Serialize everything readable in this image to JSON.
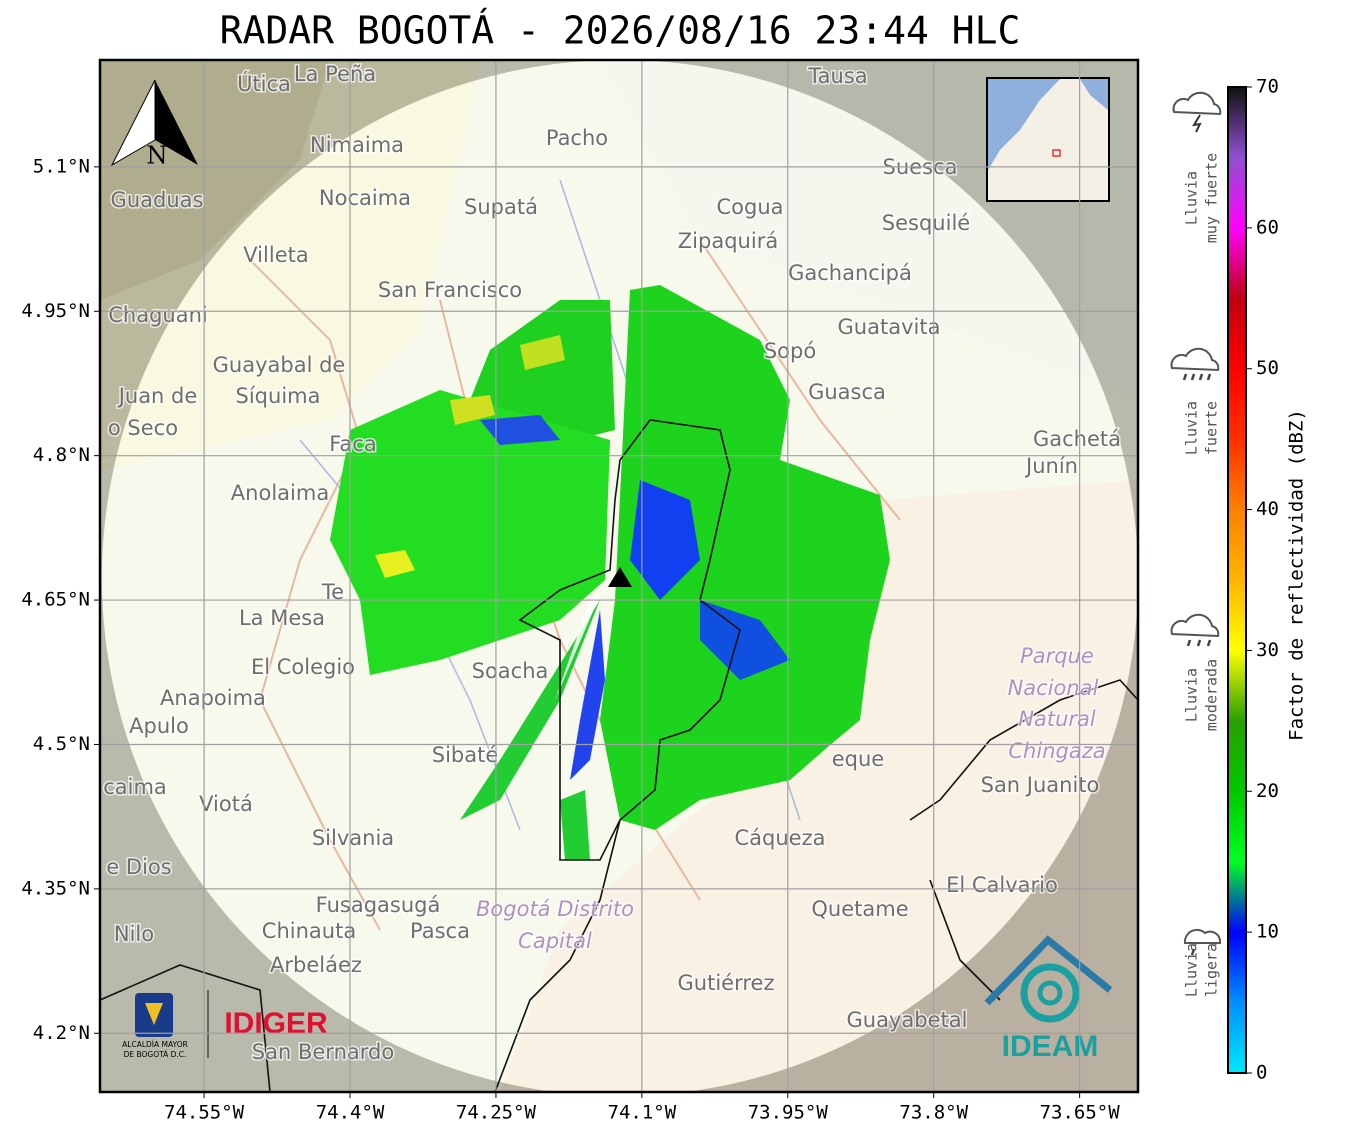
{
  "title": "RADAR BOGOTÁ - 2026/08/16 23:44 HLC",
  "map": {
    "xlim": [
      -74.657,
      -73.59
    ],
    "ylim": [
      4.139,
      5.211
    ],
    "xticks": [
      {
        "value": -74.55,
        "label": "74.55°W"
      },
      {
        "value": -74.4,
        "label": "74.4°W"
      },
      {
        "value": -74.25,
        "label": "74.25°W"
      },
      {
        "value": -74.1,
        "label": "74.1°W"
      },
      {
        "value": -73.95,
        "label": "73.95°W"
      },
      {
        "value": -73.8,
        "label": "73.8°W"
      },
      {
        "value": -73.65,
        "label": "73.65°W"
      }
    ],
    "yticks": [
      {
        "value": 5.1,
        "label": "5.1°N"
      },
      {
        "value": 4.95,
        "label": "4.95°N"
      },
      {
        "value": 4.8,
        "label": "4.8°N"
      },
      {
        "value": 4.65,
        "label": "4.65°N"
      },
      {
        "value": 4.5,
        "label": "4.5°N"
      },
      {
        "value": 4.35,
        "label": "4.35°N"
      },
      {
        "value": 4.2,
        "label": "4.2°N"
      }
    ],
    "grid": true,
    "places": [
      "Útica",
      "La Peña",
      "Tausa",
      "Pacho",
      "Nimaima",
      "Guaduas",
      "Nocaima",
      "Supatá",
      "Cogua",
      "Suesca",
      "Sesquilé",
      "Zipaquirá",
      "Villeta",
      "Gachancipá",
      "San Francisco",
      "Chaguani",
      "Guatavita",
      "Guayabal de",
      "Síquima",
      "Sopó",
      "Guasca",
      "Juan de",
      "o Seco",
      "Gachetá",
      "Junín",
      "Faca",
      "Anolaima",
      "La Mesa",
      "El Colegio",
      "Soacha",
      "Anapoima",
      "Apulo",
      "Parque",
      "Nacional",
      "Natural",
      "Chingaza",
      "Sibaté",
      "eque",
      "San Juanito",
      "caima",
      "Viotá",
      "Silvania",
      "Cáqueza",
      "e Dios",
      "El Calvario",
      "Fusagasugá",
      "Quetame",
      "Bogotá Distrito",
      "Capital",
      "Nilo",
      "Chinauta",
      "Pasca",
      "Arbeláez",
      "Gutiérrez",
      "Guayabetal",
      "San Bernardo",
      "Te"
    ],
    "north": "N"
  },
  "colorbar": {
    "label": "Factor de reflectividad (dBZ)",
    "lim": [
      0,
      70
    ],
    "ticks": [
      0,
      10,
      20,
      30,
      40,
      50,
      60,
      70
    ],
    "colors": [
      "#00e8f8",
      "#0090ff",
      "#0000ff",
      "#00ff20",
      "#00c800",
      "#28a000",
      "#ffff00",
      "#ffb400",
      "#ff8000",
      "#ff3000",
      "#ff0000",
      "#c00010",
      "#ff00ff",
      "#9050d0",
      "#101010"
    ]
  },
  "legend": [
    [
      "Lluvia",
      "ligera"
    ],
    [
      "Lluvia",
      "moderada"
    ],
    [
      "Lluvia",
      "fuerte"
    ],
    [
      "Lluvia",
      "muy fuerte"
    ]
  ],
  "logos": {
    "alcaldia": [
      "ALCALDÍA MAYOR",
      "DE BOGOTÁ D.C."
    ],
    "idiger": "IDIGER",
    "ideam": "IDEAM"
  }
}
